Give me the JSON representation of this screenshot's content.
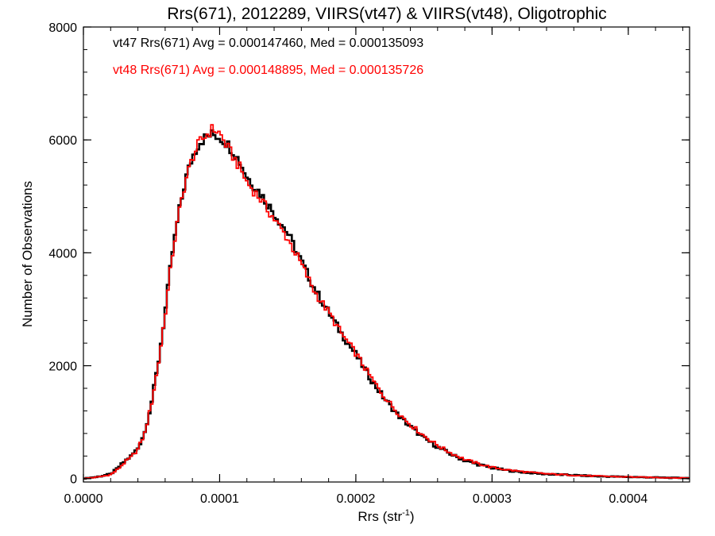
{
  "chart_data": {
    "type": "line",
    "style": "histogram-step",
    "title": "Rrs(671), 2012289, VIIRS(vt47) & VIIRS(vt48), Oligotrophic",
    "xlabel": "Rrs (str",
    "xlabel_superscript": "-1",
    "xlabel_suffix": ")",
    "ylabel": "Number of Observations",
    "xlim": [
      0.0,
      0.000445
    ],
    "ylim": [
      -60,
      8000
    ],
    "grid": false,
    "xticks": [
      0.0,
      0.0001,
      0.0002,
      0.0003,
      0.0004
    ],
    "xtick_labels": [
      "0.0000",
      "0.0001",
      "0.0002",
      "0.0003",
      "0.0004"
    ],
    "yticks": [
      0,
      2000,
      4000,
      6000,
      8000
    ],
    "ytick_labels": [
      "0",
      "2000",
      "4000",
      "6000",
      "8000"
    ],
    "annotations": [
      {
        "text": "vt47 Rrs(671) Avg = 0.000147460, Med = 0.000135093",
        "color": "#000000"
      },
      {
        "text": "vt48 Rrs(671) Avg = 0.000148895, Med = 0.000135726",
        "color": "#ff0000"
      }
    ],
    "series": [
      {
        "color": "#000000",
        "x": [
          0.0,
          1e-05,
          2e-05,
          2.5e-05,
          3e-05,
          3.5e-05,
          4e-05,
          4.5e-05,
          5e-05,
          5.5e-05,
          6e-05,
          6.5e-05,
          7e-05,
          7.5e-05,
          8e-05,
          8.5e-05,
          9e-05,
          9.5e-05,
          0.0001,
          0.000105,
          0.00011,
          0.000115,
          0.00012,
          0.00013,
          0.00014,
          0.00015,
          0.00016,
          0.00017,
          0.00018,
          0.00019,
          0.0002,
          0.00021,
          0.00022,
          0.00023,
          0.00024,
          0.00025,
          0.00026,
          0.00027,
          0.00028,
          0.00029,
          0.0003,
          0.00031,
          0.00032,
          0.00033,
          0.00034,
          0.00035,
          0.00036,
          0.00037,
          0.00038,
          0.00039,
          0.0004,
          0.00041,
          0.00042,
          0.00043,
          0.000445
        ],
        "y": [
          0,
          30,
          80,
          180,
          300,
          400,
          540,
          820,
          1350,
          2050,
          2950,
          3950,
          4700,
          5300,
          5700,
          5950,
          6050,
          6100,
          6050,
          5950,
          5800,
          5600,
          5350,
          5050,
          4700,
          4350,
          3850,
          3350,
          2950,
          2550,
          2200,
          1800,
          1450,
          1150,
          920,
          720,
          560,
          430,
          320,
          250,
          190,
          150,
          120,
          100,
          80,
          70,
          60,
          50,
          40,
          35,
          30,
          25,
          20,
          15,
          10
        ]
      },
      {
        "color": "#ff0000",
        "x": [
          0.0,
          1e-05,
          2e-05,
          2.5e-05,
          3e-05,
          3.5e-05,
          4e-05,
          4.5e-05,
          5e-05,
          5.5e-05,
          6e-05,
          6.5e-05,
          7e-05,
          7.5e-05,
          8e-05,
          8.5e-05,
          9e-05,
          9.5e-05,
          0.0001,
          0.000105,
          0.00011,
          0.000115,
          0.00012,
          0.00013,
          0.00014,
          0.00015,
          0.00016,
          0.00017,
          0.00018,
          0.00019,
          0.0002,
          0.00021,
          0.00022,
          0.00023,
          0.00024,
          0.00025,
          0.00026,
          0.00027,
          0.00028,
          0.00029,
          0.0003,
          0.00031,
          0.00032,
          0.00033,
          0.00034,
          0.00035,
          0.00036,
          0.00037,
          0.00038,
          0.00039,
          0.0004,
          0.00041,
          0.00042,
          0.00043,
          0.000445
        ],
        "y": [
          0,
          25,
          70,
          160,
          280,
          380,
          520,
          800,
          1330,
          2020,
          2900,
          3920,
          4680,
          5280,
          5680,
          5950,
          6080,
          6200,
          6120,
          5900,
          5700,
          5500,
          5250,
          4950,
          4600,
          4250,
          3800,
          3300,
          2950,
          2550,
          2220,
          1830,
          1480,
          1190,
          960,
          760,
          590,
          450,
          340,
          265,
          200,
          160,
          130,
          105,
          85,
          72,
          60,
          50,
          42,
          36,
          30,
          25,
          20,
          15,
          10
        ]
      }
    ]
  }
}
